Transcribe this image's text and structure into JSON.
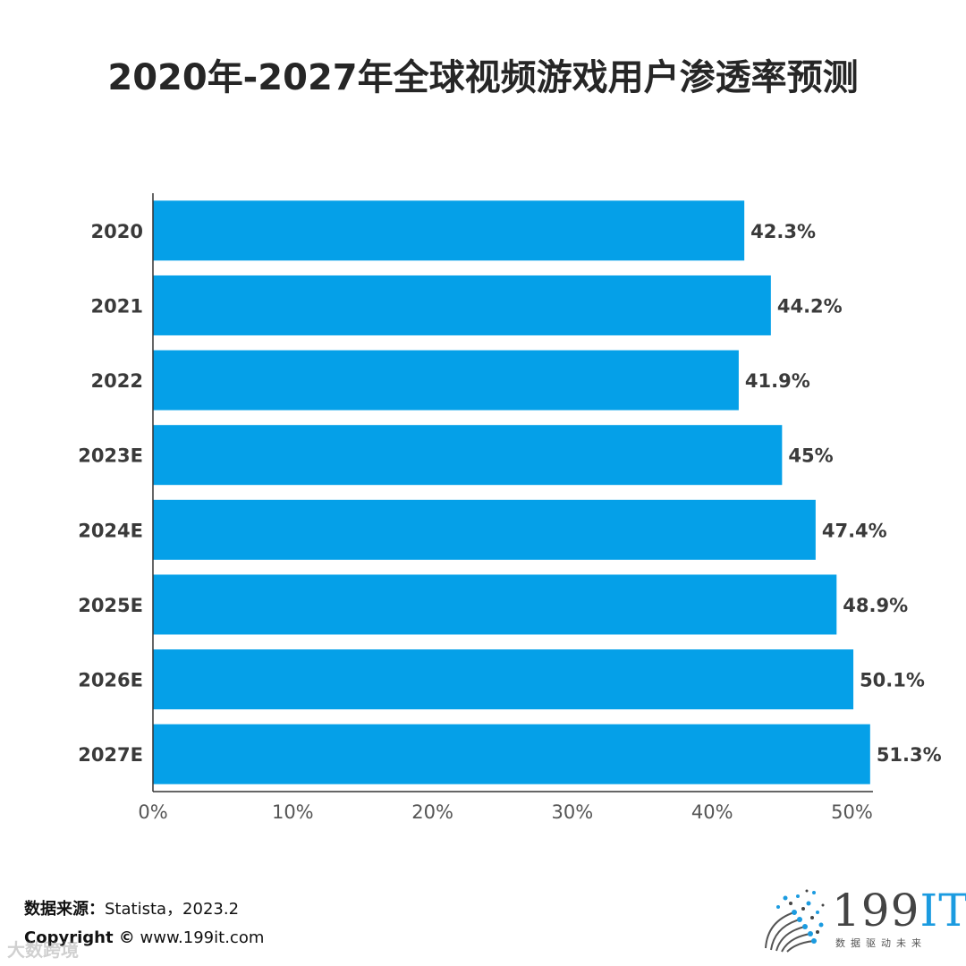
{
  "title": "2020年-2027年全球视频游戏用户渗透率预测",
  "chart_data": {
    "type": "bar",
    "orientation": "horizontal",
    "title": "2020年-2027年全球视频游戏用户渗透率预测",
    "categories": [
      "2020",
      "2021",
      "2022",
      "2023E",
      "2024E",
      "2025E",
      "2026E",
      "2027E"
    ],
    "values": [
      42.3,
      44.2,
      41.9,
      45,
      47.4,
      48.9,
      50.1,
      51.3
    ],
    "value_labels": [
      "42.3%",
      "44.2%",
      "41.9%",
      "45%",
      "47.4%",
      "48.9%",
      "50.1%",
      "51.3%"
    ],
    "x_ticks": [
      "0%",
      "10%",
      "20%",
      "30%",
      "40%",
      "50%"
    ],
    "xlim": [
      0,
      51.5
    ],
    "xlabel": "",
    "ylabel": "",
    "unit": "%",
    "grid": false,
    "bar_color": "#05a0e8"
  },
  "footer": {
    "source_label": "数据来源：",
    "source_value": "Statista，2023.2",
    "copyright_label": "Copyright ©",
    "copyright_value": "www.199it.com",
    "watermark": "大数跨境"
  },
  "logo": {
    "number": "199",
    "suffix": "IT",
    "tagline": "数据驱动未来"
  }
}
